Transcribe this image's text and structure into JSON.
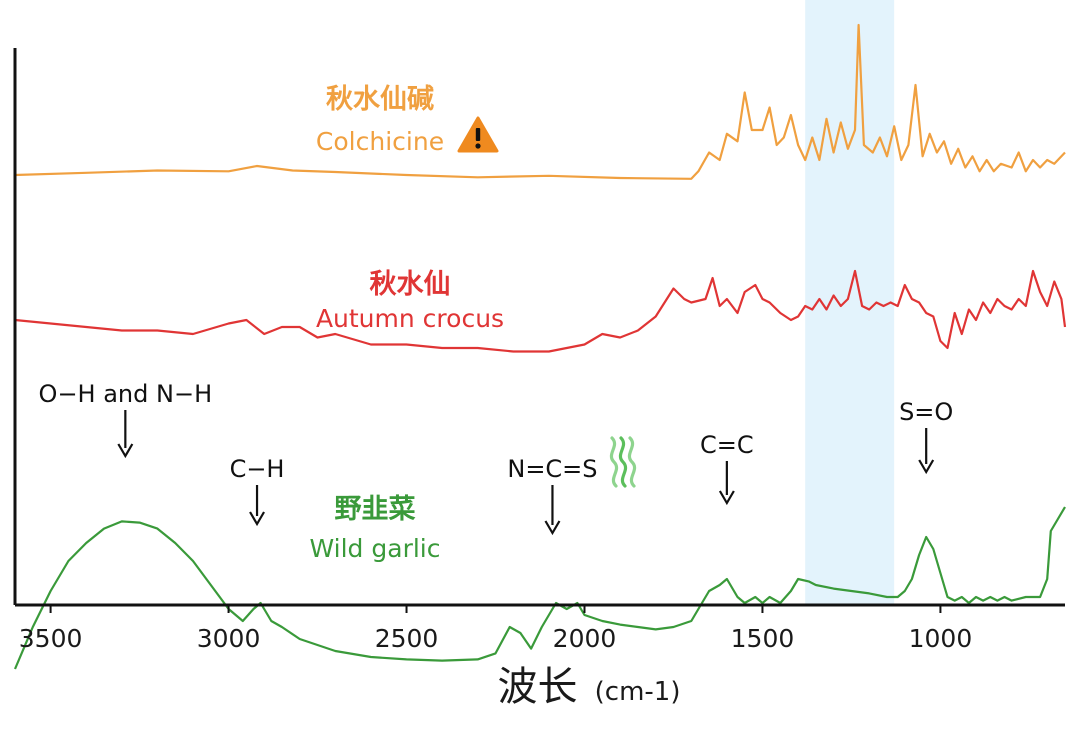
{
  "chart_data": {
    "type": "line",
    "title": "",
    "xlabel": "波长",
    "xlabel_unit": "(cm-1)",
    "xlim": [
      3600,
      650
    ],
    "x_reversed": true,
    "x_ticks": [
      3500,
      3000,
      2500,
      2000,
      1500,
      1000
    ],
    "highlight_band": {
      "x_range": [
        1380,
        1130
      ],
      "color": "#e3f3fc"
    },
    "series": [
      {
        "id": "colchicine",
        "name_zh": "秋水仙碱",
        "name_en": "Colchicine",
        "warning_icon": "warning-triangle-icon",
        "color": "#f0a040",
        "offset": 2.0,
        "points": [
          [
            3600,
            0.0
          ],
          [
            3400,
            0.03
          ],
          [
            3200,
            0.06
          ],
          [
            3000,
            0.05
          ],
          [
            2920,
            0.12
          ],
          [
            2820,
            0.06
          ],
          [
            2700,
            0.04
          ],
          [
            2500,
            0.0
          ],
          [
            2300,
            -0.03
          ],
          [
            2100,
            -0.01
          ],
          [
            1900,
            -0.04
          ],
          [
            1700,
            -0.05
          ],
          [
            1680,
            0.05
          ],
          [
            1650,
            0.3
          ],
          [
            1620,
            0.2
          ],
          [
            1600,
            0.55
          ],
          [
            1570,
            0.45
          ],
          [
            1550,
            1.1
          ],
          [
            1530,
            0.6
          ],
          [
            1500,
            0.6
          ],
          [
            1480,
            0.9
          ],
          [
            1460,
            0.4
          ],
          [
            1440,
            0.5
          ],
          [
            1420,
            0.8
          ],
          [
            1400,
            0.4
          ],
          [
            1380,
            0.2
          ],
          [
            1360,
            0.5
          ],
          [
            1340,
            0.2
          ],
          [
            1320,
            0.75
          ],
          [
            1300,
            0.3
          ],
          [
            1280,
            0.7
          ],
          [
            1260,
            0.35
          ],
          [
            1240,
            0.6
          ],
          [
            1230,
            2.0
          ],
          [
            1215,
            0.4
          ],
          [
            1190,
            0.3
          ],
          [
            1170,
            0.5
          ],
          [
            1150,
            0.25
          ],
          [
            1130,
            0.65
          ],
          [
            1110,
            0.2
          ],
          [
            1090,
            0.4
          ],
          [
            1070,
            1.2
          ],
          [
            1050,
            0.25
          ],
          [
            1030,
            0.55
          ],
          [
            1010,
            0.3
          ],
          [
            990,
            0.45
          ],
          [
            970,
            0.15
          ],
          [
            950,
            0.35
          ],
          [
            930,
            0.1
          ],
          [
            910,
            0.25
          ],
          [
            890,
            0.05
          ],
          [
            870,
            0.2
          ],
          [
            850,
            0.05
          ],
          [
            830,
            0.15
          ],
          [
            800,
            0.1
          ],
          [
            780,
            0.3
          ],
          [
            760,
            0.05
          ],
          [
            740,
            0.2
          ],
          [
            720,
            0.1
          ],
          [
            700,
            0.2
          ],
          [
            680,
            0.15
          ],
          [
            650,
            0.3
          ]
        ]
      },
      {
        "id": "autumn-crocus",
        "name_zh": "秋水仙",
        "name_en": "Autumn crocus",
        "color": "#e03535",
        "offset": 1.0,
        "points": [
          [
            3600,
            0.0
          ],
          [
            3500,
            -0.05
          ],
          [
            3400,
            -0.1
          ],
          [
            3300,
            -0.15
          ],
          [
            3200,
            -0.15
          ],
          [
            3100,
            -0.2
          ],
          [
            3000,
            -0.05
          ],
          [
            2950,
            0.0
          ],
          [
            2900,
            -0.2
          ],
          [
            2850,
            -0.1
          ],
          [
            2800,
            -0.1
          ],
          [
            2750,
            -0.25
          ],
          [
            2700,
            -0.2
          ],
          [
            2600,
            -0.35
          ],
          [
            2500,
            -0.35
          ],
          [
            2400,
            -0.4
          ],
          [
            2300,
            -0.4
          ],
          [
            2200,
            -0.45
          ],
          [
            2100,
            -0.45
          ],
          [
            2000,
            -0.35
          ],
          [
            1950,
            -0.2
          ],
          [
            1900,
            -0.25
          ],
          [
            1850,
            -0.15
          ],
          [
            1800,
            0.05
          ],
          [
            1750,
            0.45
          ],
          [
            1720,
            0.3
          ],
          [
            1700,
            0.25
          ],
          [
            1660,
            0.3
          ],
          [
            1640,
            0.6
          ],
          [
            1620,
            0.2
          ],
          [
            1600,
            0.3
          ],
          [
            1570,
            0.1
          ],
          [
            1550,
            0.4
          ],
          [
            1520,
            0.5
          ],
          [
            1500,
            0.3
          ],
          [
            1480,
            0.25
          ],
          [
            1450,
            0.1
          ],
          [
            1420,
            0.0
          ],
          [
            1400,
            0.05
          ],
          [
            1380,
            0.2
          ],
          [
            1360,
            0.15
          ],
          [
            1340,
            0.3
          ],
          [
            1320,
            0.15
          ],
          [
            1300,
            0.35
          ],
          [
            1280,
            0.2
          ],
          [
            1260,
            0.3
          ],
          [
            1240,
            0.7
          ],
          [
            1220,
            0.2
          ],
          [
            1200,
            0.15
          ],
          [
            1180,
            0.25
          ],
          [
            1160,
            0.2
          ],
          [
            1140,
            0.25
          ],
          [
            1120,
            0.2
          ],
          [
            1100,
            0.5
          ],
          [
            1080,
            0.3
          ],
          [
            1060,
            0.25
          ],
          [
            1040,
            0.1
          ],
          [
            1020,
            0.05
          ],
          [
            1000,
            -0.3
          ],
          [
            980,
            -0.4
          ],
          [
            960,
            0.1
          ],
          [
            940,
            -0.2
          ],
          [
            920,
            0.15
          ],
          [
            900,
            0.0
          ],
          [
            880,
            0.25
          ],
          [
            860,
            0.1
          ],
          [
            840,
            0.3
          ],
          [
            820,
            0.2
          ],
          [
            800,
            0.15
          ],
          [
            780,
            0.3
          ],
          [
            760,
            0.2
          ],
          [
            740,
            0.7
          ],
          [
            720,
            0.4
          ],
          [
            700,
            0.2
          ],
          [
            680,
            0.55
          ],
          [
            660,
            0.3
          ],
          [
            650,
            -0.1
          ]
        ]
      },
      {
        "id": "wild-garlic",
        "name_zh": "野韭菜",
        "name_en": "Wild garlic",
        "color": "#3a9a3a",
        "offset": 0.0,
        "points": [
          [
            3600,
            -0.95
          ],
          [
            3550,
            -0.6
          ],
          [
            3500,
            -0.3
          ],
          [
            3450,
            -0.05
          ],
          [
            3400,
            0.1
          ],
          [
            3350,
            0.22
          ],
          [
            3300,
            0.28
          ],
          [
            3250,
            0.27
          ],
          [
            3200,
            0.22
          ],
          [
            3150,
            0.1
          ],
          [
            3100,
            -0.05
          ],
          [
            3050,
            -0.25
          ],
          [
            3000,
            -0.45
          ],
          [
            2960,
            -0.55
          ],
          [
            2930,
            -0.45
          ],
          [
            2910,
            -0.4
          ],
          [
            2880,
            -0.55
          ],
          [
            2850,
            -0.6
          ],
          [
            2800,
            -0.7
          ],
          [
            2700,
            -0.8
          ],
          [
            2600,
            -0.85
          ],
          [
            2500,
            -0.87
          ],
          [
            2400,
            -0.88
          ],
          [
            2300,
            -0.87
          ],
          [
            2250,
            -0.82
          ],
          [
            2210,
            -0.6
          ],
          [
            2180,
            -0.65
          ],
          [
            2150,
            -0.78
          ],
          [
            2120,
            -0.6
          ],
          [
            2080,
            -0.4
          ],
          [
            2050,
            -0.45
          ],
          [
            2020,
            -0.4
          ],
          [
            2000,
            -0.5
          ],
          [
            1950,
            -0.55
          ],
          [
            1900,
            -0.58
          ],
          [
            1850,
            -0.6
          ],
          [
            1800,
            -0.62
          ],
          [
            1750,
            -0.6
          ],
          [
            1700,
            -0.55
          ],
          [
            1680,
            -0.45
          ],
          [
            1650,
            -0.3
          ],
          [
            1620,
            -0.25
          ],
          [
            1600,
            -0.2
          ],
          [
            1570,
            -0.35
          ],
          [
            1550,
            -0.4
          ],
          [
            1520,
            -0.35
          ],
          [
            1500,
            -0.4
          ],
          [
            1480,
            -0.35
          ],
          [
            1450,
            -0.4
          ],
          [
            1420,
            -0.3
          ],
          [
            1400,
            -0.2
          ],
          [
            1370,
            -0.22
          ],
          [
            1350,
            -0.25
          ],
          [
            1300,
            -0.28
          ],
          [
            1250,
            -0.3
          ],
          [
            1200,
            -0.32
          ],
          [
            1150,
            -0.35
          ],
          [
            1120,
            -0.35
          ],
          [
            1100,
            -0.3
          ],
          [
            1080,
            -0.2
          ],
          [
            1060,
            0.0
          ],
          [
            1040,
            0.15
          ],
          [
            1020,
            0.05
          ],
          [
            1000,
            -0.15
          ],
          [
            980,
            -0.35
          ],
          [
            960,
            -0.38
          ],
          [
            940,
            -0.35
          ],
          [
            920,
            -0.4
          ],
          [
            900,
            -0.35
          ],
          [
            880,
            -0.38
          ],
          [
            860,
            -0.35
          ],
          [
            840,
            -0.38
          ],
          [
            820,
            -0.35
          ],
          [
            800,
            -0.38
          ],
          [
            760,
            -0.35
          ],
          [
            720,
            -0.35
          ],
          [
            700,
            -0.2
          ],
          [
            690,
            0.2
          ],
          [
            670,
            0.3
          ],
          [
            650,
            0.4
          ]
        ]
      }
    ],
    "annotations": [
      {
        "id": "oh-nh",
        "label": "O−H and N−H",
        "x": 3290,
        "y_level": "wild-garlic"
      },
      {
        "id": "ch",
        "label": "C−H",
        "x": 2920,
        "y_level": "wild-garlic"
      },
      {
        "id": "ncs",
        "label": "N=C=S",
        "x": 2090,
        "y_level": "wild-garlic",
        "icon": "smell-wave-icon"
      },
      {
        "id": "cc",
        "label": "C=C",
        "x": 1600,
        "y_level": "wild-garlic"
      },
      {
        "id": "so",
        "label": "S=O",
        "x": 1040,
        "y_level": "wild-garlic"
      }
    ],
    "grid": false,
    "legend": "inline"
  }
}
